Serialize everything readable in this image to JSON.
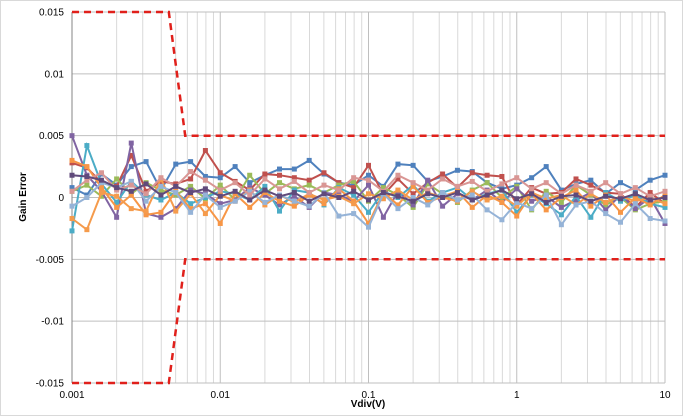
{
  "chart_data": {
    "type": "line",
    "title": "",
    "xlabel": "Vdiv(V)",
    "ylabel": "Gain Error",
    "xscale": "log",
    "xlim": [
      0.001,
      10
    ],
    "ylim": [
      -0.015,
      0.015
    ],
    "grid": true,
    "legend": "none",
    "x_ticks": [
      {
        "value": 0.001,
        "label": "0.001"
      },
      {
        "value": 0.01,
        "label": "0.01"
      },
      {
        "value": 0.1,
        "label": "0.1"
      },
      {
        "value": 1,
        "label": "1"
      },
      {
        "value": 10,
        "label": "10"
      }
    ],
    "y_ticks": [
      {
        "value": 0.015,
        "label": "0.015"
      },
      {
        "value": 0.01,
        "label": "0.01"
      },
      {
        "value": 0.005,
        "label": "0.005"
      },
      {
        "value": 0,
        "label": "0"
      },
      {
        "value": -0.005,
        "label": "-0.005"
      },
      {
        "value": -0.01,
        "label": "-0.01"
      },
      {
        "value": -0.015,
        "label": "-0.015"
      }
    ],
    "x": [
      0.001,
      0.00126,
      0.00158,
      0.002,
      0.00251,
      0.00316,
      0.00398,
      0.00501,
      0.00631,
      0.00794,
      0.01,
      0.0126,
      0.0158,
      0.02,
      0.0251,
      0.0316,
      0.0398,
      0.0501,
      0.0631,
      0.0794,
      0.1,
      0.126,
      0.158,
      0.2,
      0.251,
      0.316,
      0.398,
      0.501,
      0.631,
      0.794,
      1,
      1.26,
      1.58,
      2,
      2.51,
      3.16,
      3.98,
      5.01,
      6.31,
      7.94,
      10
    ],
    "limits": [
      {
        "name": "upper-limit",
        "color": "#E0201B",
        "x": [
          0.001,
          0.0045,
          0.0058,
          10
        ],
        "y": [
          0.015,
          0.015,
          0.005,
          0.005
        ]
      },
      {
        "name": "lower-limit",
        "color": "#E0201B",
        "x": [
          0.001,
          0.0045,
          0.0058,
          10
        ],
        "y": [
          -0.015,
          -0.015,
          -0.005,
          -0.005
        ]
      }
    ],
    "series": [
      {
        "color": "#4F81BD",
        "values": [
          0.0008,
          0.0002,
          0.0019,
          0.001,
          0.0025,
          0.0029,
          0.0006,
          0.0027,
          0.0029,
          0.0017,
          0.0016,
          0.0025,
          0.0012,
          0.0018,
          0.0023,
          0.0023,
          0.003,
          0.0019,
          0.0012,
          0.001,
          0.0018,
          0.0009,
          0.0027,
          0.0026,
          0.0013,
          0.0017,
          0.0022,
          0.0021,
          0.0012,
          0.0007,
          0.001,
          0.0016,
          0.0025,
          0.0006,
          0.0011,
          0.0014,
          0.0003,
          0.0012,
          0.0006,
          0.0014,
          0.0018
        ]
      },
      {
        "color": "#C0504D",
        "values": [
          0.0028,
          0.0024,
          0.0012,
          0.0009,
          0.0034,
          0.0005,
          0.0013,
          0.0011,
          0.0015,
          0.0038,
          0.002,
          0.0013,
          0.0006,
          0.0019,
          0.0018,
          0.0016,
          0.0014,
          0.002,
          0.0012,
          0.0008,
          0.0026,
          0.0002,
          0.0015,
          0.0003,
          0.0012,
          0.0019,
          0.0008,
          0.002,
          0.0018,
          0.0017,
          -0.0006,
          0.0008,
          0.0003,
          0.0004,
          0.0015,
          0.001,
          0.0004,
          0.0003,
          -0.0008,
          0.0004,
          -0.0005
        ]
      },
      {
        "color": "#9BBB59",
        "values": [
          0.0005,
          0.001,
          0.0001,
          0.0015,
          0.0003,
          0.0012,
          0.0006,
          0.0002,
          0.0009,
          -0.0001,
          0.001,
          -0.0002,
          0.0018,
          0.0003,
          0.0012,
          0.0007,
          0.001,
          0.0004,
          0.001,
          0.0013,
          -0.0003,
          0.0008,
          0.0002,
          -0.0008,
          0.0011,
          0.0003,
          -0.0004,
          0.0006,
          0.0012,
          0.0,
          0.0009,
          -0.001,
          0.0005,
          -0.0004,
          0.001,
          0.0002,
          -0.0006,
          0.0,
          -0.001,
          -0.0005,
          -0.0003
        ]
      },
      {
        "color": "#8064A2",
        "values": [
          0.005,
          0.0018,
          0.0005,
          -0.0016,
          0.0044,
          -0.0013,
          -0.0016,
          -0.0009,
          0.0006,
          0.0003,
          -0.0005,
          -0.0002,
          0.0008,
          0.0002,
          -0.0006,
          0.0001,
          -0.0008,
          0.0004,
          0.0002,
          -0.0003,
          0.001,
          -0.0016,
          0.0005,
          -0.0006,
          0.0014,
          -0.0007,
          0.0003,
          -0.0002,
          0.0006,
          -0.0004,
          0.0007,
          -0.0003,
          0.0001,
          -0.0008,
          -0.0002,
          0.0004,
          -0.001,
          0.0002,
          -0.0009,
          0.0,
          -0.0021
        ]
      },
      {
        "color": "#4BACC6",
        "values": [
          -0.0027,
          0.0042,
          0.0011,
          -0.0004,
          0.0013,
          0.0002,
          -0.0002,
          0.0004,
          -0.0005,
          0.0,
          0.0005,
          0.0003,
          -0.0002,
          0.0009,
          -0.0011,
          0.0006,
          0.0004,
          -0.0006,
          0.0008,
          0.0002,
          -0.0012,
          0.0005,
          0.0,
          0.001,
          -0.0003,
          0.0004,
          0.0008,
          -0.0002,
          0.0003,
          0.0006,
          -0.0012,
          0.0002,
          -0.0005,
          -0.0014,
          0.0001,
          -0.0016,
          0.0004,
          -0.0003,
          0.0002,
          -0.0005,
          -0.0008
        ]
      },
      {
        "color": "#F79646",
        "values": [
          0.003,
          0.0025,
          0.0008,
          -0.0008,
          0.0002,
          -0.0014,
          -0.0012,
          0.0005,
          -0.0009,
          -0.0005,
          -0.0021,
          0.0003,
          -0.0008,
          0.0004,
          -0.0003,
          -0.0007,
          0.0002,
          -0.0005,
          0.0007,
          -0.0003,
          -0.0021,
          0.0004,
          -0.0006,
          0.0009,
          -0.0004,
          0.0001,
          0.0005,
          -0.0008,
          0.0002,
          -0.0004,
          -0.0015,
          0.0003,
          -0.001,
          0.0,
          0.0006,
          -0.0007,
          0.0002,
          -0.0012,
          0.0,
          -0.0006,
          0.0002
        ]
      },
      {
        "color": "#F59B4C",
        "values": [
          -0.0017,
          -0.0026,
          0.0004,
          0.0001,
          -0.0009,
          -0.0011,
          0.0015,
          -0.0011,
          0.0003,
          -0.0013,
          0.0002,
          -0.0003,
          0.0006,
          -0.0006,
          0.0002,
          -0.0004,
          0.0003,
          -0.0002,
          0.0001,
          -0.0005,
          0.0003,
          -0.0001,
          0.0006,
          -0.0002,
          0.0004,
          0.0,
          -0.0003,
          0.0005,
          -0.0002,
          0.0001,
          -0.0007,
          0.0004,
          -0.0001,
          0.0002,
          -0.0006,
          0.0003,
          -0.0004,
          0.0001,
          -0.0003,
          0.0,
          -0.0005
        ]
      },
      {
        "color": "#95B3D7",
        "values": [
          -0.0007,
          0.0,
          0.0012,
          0.0008,
          0.0013,
          -0.0003,
          0.0009,
          0.0004,
          -0.0012,
          0.0002,
          -0.0008,
          -0.0003,
          0.0005,
          -0.0004,
          0.0002,
          -0.0003,
          -0.0007,
          0.0004,
          -0.0015,
          -0.0013,
          -0.0024,
          0.0003,
          -0.0009,
          0.0,
          -0.0006,
          0.0004,
          -0.0002,
          0.0002,
          -0.001,
          -0.0018,
          -0.0004,
          -0.0009,
          0.0002,
          -0.0022,
          -0.0006,
          -0.0003,
          -0.0013,
          -0.002,
          -0.0005,
          -0.0017,
          -0.0019
        ]
      },
      {
        "color": "#D99694",
        "values": [
          0.0005,
          0.0014,
          0.002,
          0.0006,
          0.001,
          0.0003,
          0.0016,
          0.0009,
          0.0021,
          0.0014,
          0.0006,
          0.0012,
          0.0002,
          0.0015,
          0.0007,
          0.0013,
          0.0004,
          0.001,
          0.0006,
          0.0016,
          0.0014,
          0.0005,
          0.0018,
          0.0012,
          0.0006,
          0.0015,
          0.0009,
          0.0013,
          0.0005,
          0.0011,
          0.0016,
          0.0007,
          0.0012,
          0.0003,
          0.001,
          0.0005,
          0.0012,
          0.0003,
          0.0008,
          0.0001,
          0.0005
        ]
      },
      {
        "color": "#604A7B",
        "values": [
          0.0018,
          0.0017,
          0.0014,
          0.0008,
          0.0005,
          0.0011,
          0.0002,
          0.0009,
          0.0004,
          0.0007,
          0.0001,
          0.0005,
          -0.0002,
          0.0006,
          0.0001,
          0.0004,
          -0.0003,
          0.0003,
          0.0,
          0.0005,
          -0.0002,
          0.0004,
          0.0001,
          -0.0003,
          0.0003,
          0.0,
          0.0004,
          -0.0002,
          0.0002,
          0.0006,
          -0.0001,
          0.0003,
          -0.0004,
          0.0001,
          0.0002,
          -0.0003,
          0.0001,
          -0.0001,
          0.0003,
          -0.0002,
          0.0
        ]
      }
    ]
  }
}
